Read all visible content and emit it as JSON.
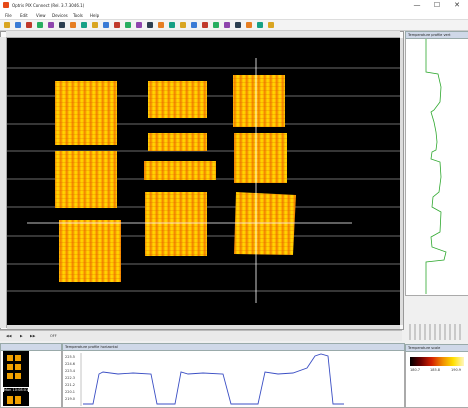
{
  "window": {
    "title": "Optris PIX Connect (Rel. 3.7.3046.1)",
    "min_glyph": "—",
    "max_glyph": "☐",
    "close_glyph": "✕"
  },
  "menu": [
    "File",
    "Edit",
    "View",
    "Devices",
    "Tools",
    "Help"
  ],
  "toolbar_icons": [
    "open-icon",
    "save-icon",
    "camera-icon",
    "play-icon",
    "record-icon",
    "snapshot-icon",
    "palette-icon",
    "zoom-in-icon",
    "zoom-out-icon",
    "grid-icon",
    "line-icon",
    "measure-icon",
    "layout-icon",
    "layout2-icon",
    "layout3-icon",
    "chart-icon",
    "chart2-icon",
    "settings-icon",
    "info-icon",
    "flag-icon",
    "flag2-icon",
    "window-icon",
    "window2-icon",
    "export-icon",
    "help-icon"
  ],
  "panels": {
    "vertical_profile_title": "Temperature profile vert",
    "horizontal_profile_title": "Temperature profile horizontal",
    "scale_title": "Temperature scale",
    "scale_values": [
      "180.7",
      "185.8",
      "190.9"
    ],
    "thumbs_title": "",
    "thumb1_label": "Mon 10:08:01"
  },
  "graph": {
    "y_labels": [
      "225.5",
      "224.6",
      "223.4",
      "222.3",
      "221.2",
      "220.1",
      "219.0"
    ]
  },
  "colors": {
    "canvas_bg": "#000000",
    "hot": "#ffdd00",
    "warm": "#f08a00",
    "profile_line": "#2ea82e",
    "horizontal_line": "#3b4fc4"
  },
  "bottom_controls": [
    "◀◀",
    "▶",
    "▶▶",
    "OFF"
  ]
}
